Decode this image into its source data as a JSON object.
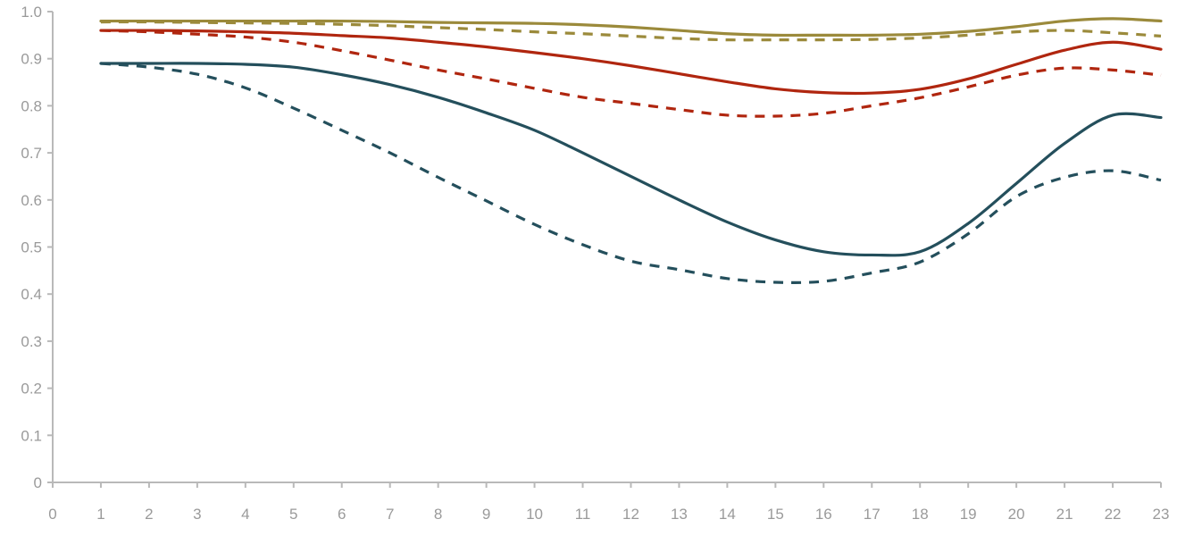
{
  "chart_data": {
    "type": "line",
    "title": "",
    "xlabel": "",
    "ylabel": "",
    "x": [
      1,
      2,
      3,
      4,
      5,
      6,
      7,
      8,
      9,
      10,
      11,
      12,
      13,
      14,
      15,
      16,
      17,
      18,
      19,
      20,
      21,
      22,
      23
    ],
    "xlim": [
      0,
      23
    ],
    "ylim": [
      0,
      1.0
    ],
    "x_ticks": [
      "0",
      "1",
      "2",
      "3",
      "4",
      "5",
      "6",
      "7",
      "8",
      "9",
      "10",
      "11",
      "12",
      "13",
      "14",
      "15",
      "16",
      "17",
      "18",
      "19",
      "20",
      "21",
      "22",
      "23"
    ],
    "y_ticks": [
      "0",
      "0.1",
      "0.2",
      "0.3",
      "0.4",
      "0.5",
      "0.6",
      "0.7",
      "0.8",
      "0.9",
      "1.0"
    ],
    "grid": false,
    "legend": "none",
    "series": [
      {
        "color": "#9b8a3b",
        "style": "solid",
        "values": [
          0.98,
          0.98,
          0.98,
          0.98,
          0.98,
          0.98,
          0.979,
          0.977,
          0.976,
          0.975,
          0.972,
          0.967,
          0.96,
          0.953,
          0.95,
          0.95,
          0.95,
          0.952,
          0.958,
          0.968,
          0.98,
          0.985,
          0.98
        ]
      },
      {
        "color": "#9b8a3b",
        "style": "dashed",
        "values": [
          0.978,
          0.978,
          0.977,
          0.976,
          0.975,
          0.973,
          0.97,
          0.966,
          0.962,
          0.957,
          0.953,
          0.948,
          0.943,
          0.94,
          0.94,
          0.94,
          0.941,
          0.944,
          0.95,
          0.957,
          0.96,
          0.955,
          0.948
        ]
      },
      {
        "color": "#b0260f",
        "style": "solid",
        "values": [
          0.96,
          0.96,
          0.959,
          0.957,
          0.954,
          0.949,
          0.944,
          0.935,
          0.925,
          0.913,
          0.9,
          0.885,
          0.868,
          0.851,
          0.836,
          0.828,
          0.827,
          0.835,
          0.857,
          0.888,
          0.918,
          0.935,
          0.92
        ]
      },
      {
        "color": "#b0260f",
        "style": "dashed",
        "values": [
          0.96,
          0.957,
          0.952,
          0.946,
          0.935,
          0.917,
          0.897,
          0.876,
          0.857,
          0.837,
          0.818,
          0.805,
          0.792,
          0.78,
          0.778,
          0.784,
          0.8,
          0.817,
          0.84,
          0.865,
          0.88,
          0.876,
          0.865
        ]
      },
      {
        "color": "#244f5c",
        "style": "solid",
        "values": [
          0.89,
          0.89,
          0.89,
          0.888,
          0.882,
          0.866,
          0.845,
          0.818,
          0.785,
          0.748,
          0.7,
          0.65,
          0.6,
          0.553,
          0.515,
          0.49,
          0.483,
          0.49,
          0.55,
          0.635,
          0.72,
          0.78,
          0.775
        ]
      },
      {
        "color": "#244f5c",
        "style": "dashed",
        "values": [
          0.89,
          0.882,
          0.867,
          0.838,
          0.795,
          0.748,
          0.7,
          0.648,
          0.598,
          0.548,
          0.505,
          0.47,
          0.452,
          0.433,
          0.425,
          0.427,
          0.445,
          0.468,
          0.528,
          0.607,
          0.648,
          0.662,
          0.642
        ]
      }
    ]
  }
}
